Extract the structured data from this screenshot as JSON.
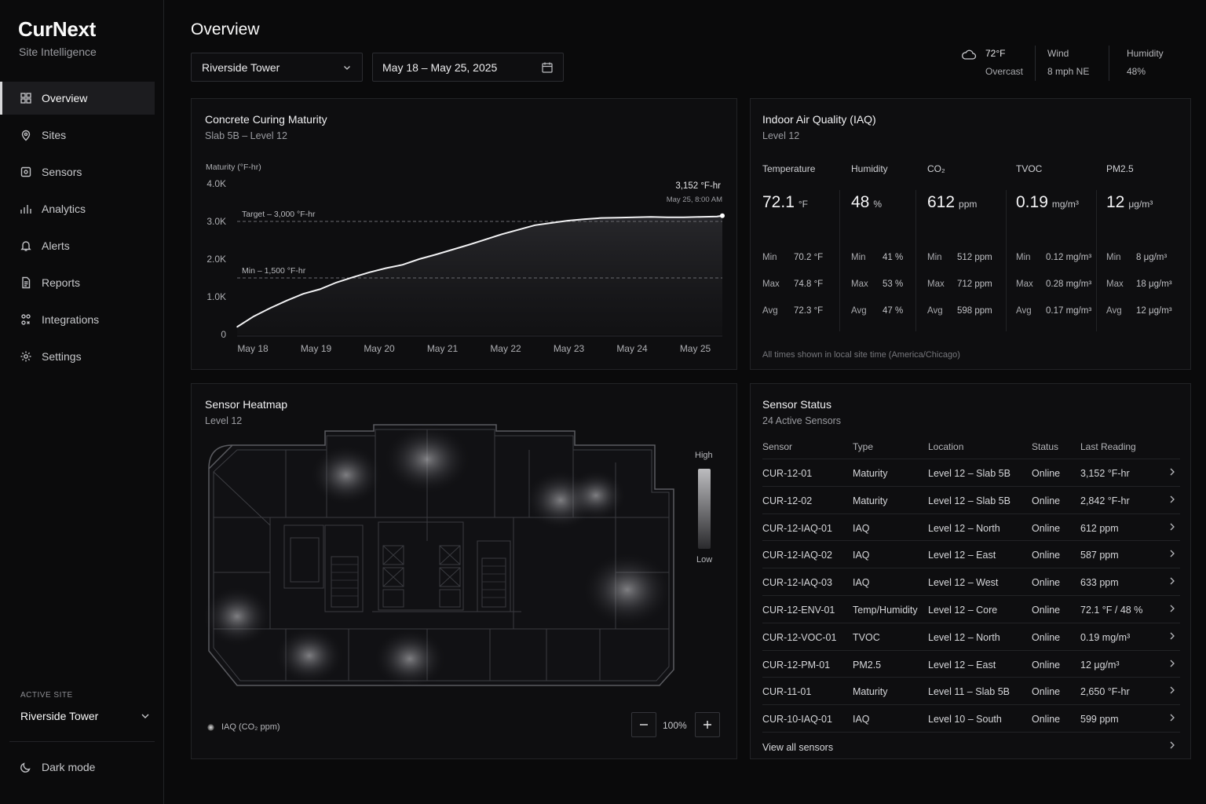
{
  "sidebar": {
    "brand": "CurNext",
    "brand_sub": "Site Intelligence",
    "items": [
      {
        "label": "Overview",
        "icon": "grid-icon",
        "active": true
      },
      {
        "label": "Sites",
        "icon": "map-pin-icon"
      },
      {
        "label": "Sensors",
        "icon": "sensor-icon"
      },
      {
        "label": "Analytics",
        "icon": "bar-chart-icon"
      },
      {
        "label": "Alerts",
        "icon": "bell-icon"
      },
      {
        "label": "Reports",
        "icon": "document-icon"
      },
      {
        "label": "Integrations",
        "icon": "integrations-icon"
      },
      {
        "label": "Settings",
        "icon": "gear-icon"
      }
    ],
    "active_site_label": "ACTIVE SITE",
    "active_site": "Riverside Tower",
    "dark_mode_label": "Dark mode"
  },
  "header": {
    "title": "Overview",
    "site_select": "Riverside Tower",
    "date_range": "May 18 – May 25, 2025",
    "weather": {
      "temp": "72°F",
      "condition": "Overcast",
      "wind_label": "Wind",
      "wind_value": "8 mph NE",
      "humidity_label": "Humidity",
      "humidity_value": "48%"
    }
  },
  "curing": {
    "title": "Concrete Curing Maturity",
    "subtitle": "Slab 5B – Level 12",
    "target_label": "Target – 3,000 °F-hr",
    "min_label": "Min – 1,500 °F-hr",
    "latest_value": "3,152 °F-hr",
    "latest_time": "May 25, 8:00 AM"
  },
  "chart_data": {
    "type": "line",
    "ylabel": "Maturity (°F-hr)",
    "ylim": [
      0,
      4000
    ],
    "y_ticks": [
      "0",
      "1.0K",
      "2.0K",
      "3.0K",
      "4.0K"
    ],
    "categories": [
      "May 18",
      "May 19",
      "May 20",
      "May 21",
      "May 22",
      "May 23",
      "May 24",
      "May 25"
    ],
    "x": [
      0,
      0.25,
      0.5,
      0.75,
      1,
      1.25,
      1.5,
      1.75,
      2,
      2.25,
      2.5,
      2.75,
      3,
      3.25,
      3.5,
      3.75,
      4,
      4.25,
      4.5,
      4.75,
      5,
      5.25,
      5.5,
      5.75,
      6,
      6.25,
      6.5,
      6.75,
      7,
      7.25,
      7.33
    ],
    "values": [
      200,
      480,
      700,
      900,
      1080,
      1200,
      1380,
      1520,
      1650,
      1760,
      1850,
      2000,
      2120,
      2250,
      2380,
      2520,
      2660,
      2780,
      2900,
      2960,
      3020,
      3060,
      3090,
      3100,
      3110,
      3120,
      3110,
      3110,
      3120,
      3130,
      3152
    ],
    "reference_lines": [
      {
        "label": "Target – 3,000 °F-hr",
        "value": 3000
      },
      {
        "label": "Min – 1,500 °F-hr",
        "value": 1500
      }
    ],
    "grid": false
  },
  "iaq": {
    "title": "Indoor Air Quality (IAQ)",
    "subtitle": "Level 12",
    "metrics": [
      {
        "label": "Temperature",
        "value": "72.1",
        "unit": "°F",
        "min": "70.2 °F",
        "max": "74.8 °F",
        "avg": "72.3 °F"
      },
      {
        "label": "Humidity",
        "value": "48",
        "unit": "%",
        "min": "41 %",
        "max": "53 %",
        "avg": "47 %"
      },
      {
        "label": "CO₂",
        "value": "612",
        "unit": "ppm",
        "min": "512 ppm",
        "max": "712 ppm",
        "avg": "598 ppm"
      },
      {
        "label": "TVOC",
        "value": "0.19",
        "unit": "mg/m³",
        "min": "0.12 mg/m³",
        "max": "0.28 mg/m³",
        "avg": "0.17 mg/m³"
      },
      {
        "label": "PM2.5",
        "value": "12",
        "unit": "μg/m³",
        "min": "8 μg/m³",
        "max": "18 μg/m³",
        "avg": "12 μg/m³"
      }
    ],
    "stat_labels": {
      "min": "Min",
      "max": "Max",
      "avg": "Avg"
    },
    "footer": "All times shown in local site time (America/Chicago)"
  },
  "heatmap": {
    "title": "Sensor Heatmap",
    "subtitle": "Level 12",
    "legend_high": "High",
    "legend_low": "Low",
    "legend_metric": "IAQ (CO₂ ppm)",
    "zoom": "100%"
  },
  "sensor_status": {
    "title": "Sensor Status",
    "subtitle": "24 Active Sensors",
    "columns": [
      "Sensor",
      "Type",
      "Location",
      "Status",
      "Last Reading"
    ],
    "rows": [
      [
        "CUR-12-01",
        "Maturity",
        "Level 12 – Slab 5B",
        "Online",
        "3,152 °F-hr"
      ],
      [
        "CUR-12-02",
        "Maturity",
        "Level 12 – Slab 5B",
        "Online",
        "2,842 °F-hr"
      ],
      [
        "CUR-12-IAQ-01",
        "IAQ",
        "Level 12 – North",
        "Online",
        "612 ppm"
      ],
      [
        "CUR-12-IAQ-02",
        "IAQ",
        "Level 12 – East",
        "Online",
        "587 ppm"
      ],
      [
        "CUR-12-IAQ-03",
        "IAQ",
        "Level 12 – West",
        "Online",
        "633 ppm"
      ],
      [
        "CUR-12-ENV-01",
        "Temp/Humidity",
        "Level 12 – Core",
        "Online",
        "72.1 °F / 48 %"
      ],
      [
        "CUR-12-VOC-01",
        "TVOC",
        "Level 12 – North",
        "Online",
        "0.19 mg/m³"
      ],
      [
        "CUR-12-PM-01",
        "PM2.5",
        "Level 12 – East",
        "Online",
        "12 μg/m³"
      ],
      [
        "CUR-11-01",
        "Maturity",
        "Level 11 – Slab 5B",
        "Online",
        "2,650 °F-hr"
      ],
      [
        "CUR-10-IAQ-01",
        "IAQ",
        "Level 10 – South",
        "Online",
        "599 ppm"
      ]
    ],
    "view_all": "View all sensors"
  }
}
